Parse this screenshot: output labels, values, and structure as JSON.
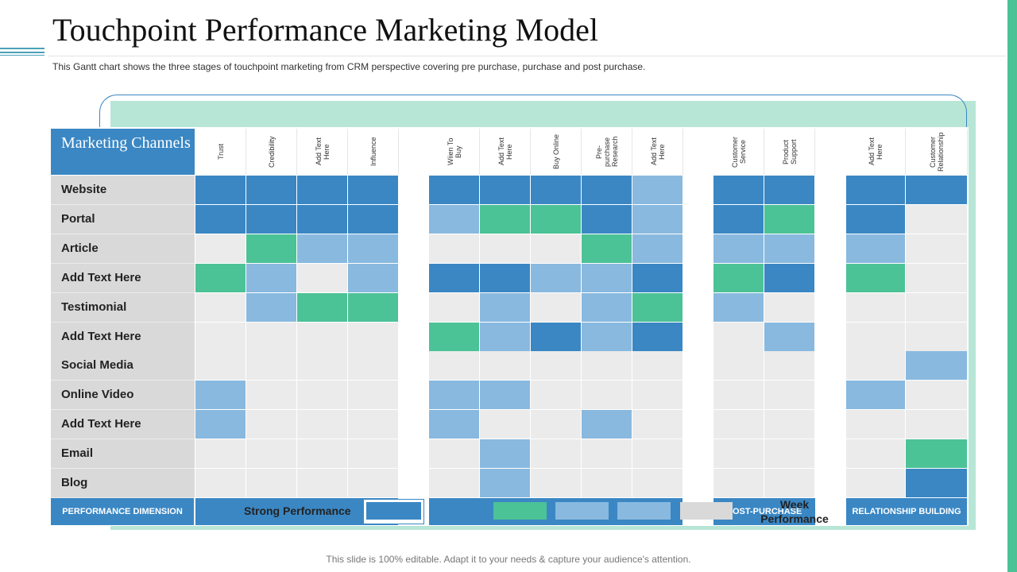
{
  "title": "Touchpoint Performance Marketing Model",
  "subtitle": "This Gantt chart shows the three stages of touchpoint marketing from CRM perspective covering  pre purchase,  purchase and post purchase.",
  "footer": "This slide is 100% editable. Adapt it to your needs & capture your audience's attention.",
  "header_label": "Marketing Channels",
  "columns": [
    {
      "label": "Trust",
      "group": 0
    },
    {
      "label": "Credibility",
      "group": 0
    },
    {
      "label": "Add Text Here",
      "group": 0
    },
    {
      "label": "Influence",
      "group": 0
    },
    {
      "label": "Wiien To Buy",
      "group": 1
    },
    {
      "label": "Add Text Here",
      "group": 1
    },
    {
      "label": "Buy Online",
      "group": 1
    },
    {
      "label": "Pre-purchase Research",
      "group": 1
    },
    {
      "label": "Add Text Here",
      "group": 1
    },
    {
      "label": "Customer Service",
      "group": 2
    },
    {
      "label": "Product Support",
      "group": 2
    },
    {
      "label": "Add Text Here",
      "group": 3
    },
    {
      "label": "Customer Relationship",
      "group": 3
    }
  ],
  "rows": [
    {
      "label": "Website",
      "cells": [
        "S",
        "S",
        "S",
        "S",
        "S",
        "S",
        "S",
        "S",
        "M",
        "S",
        "S",
        "S",
        "S"
      ]
    },
    {
      "label": "Portal",
      "cells": [
        "S",
        "S",
        "S",
        "S",
        "M",
        "G",
        "G",
        "S",
        "M",
        "S",
        "G",
        "S",
        "N"
      ]
    },
    {
      "label": "Article",
      "cells": [
        "N",
        "G",
        "M",
        "M",
        "N",
        "N",
        "N",
        "G",
        "M",
        "M",
        "M",
        "M",
        "N"
      ]
    },
    {
      "label": "Add  Text Here",
      "cells": [
        "G",
        "M",
        "N",
        "M",
        "S",
        "S",
        "M",
        "M",
        "S",
        "G",
        "S",
        "G",
        "N"
      ]
    },
    {
      "label": "Testimonial",
      "cells": [
        "N",
        "M",
        "G",
        "G",
        "N",
        "M",
        "N",
        "M",
        "G",
        "M",
        "N",
        "N",
        "N"
      ]
    },
    {
      "label": "Add  Text Here",
      "cells": [
        "N",
        "N",
        "N",
        "N",
        "G",
        "M",
        "S",
        "M",
        "S",
        "N",
        "M",
        "N",
        "N"
      ]
    },
    {
      "label": "Social Media",
      "cells": [
        "N",
        "N",
        "N",
        "N",
        "N",
        "N",
        "N",
        "N",
        "N",
        "N",
        "N",
        "N",
        "M"
      ]
    },
    {
      "label": "Online Video",
      "cells": [
        "M",
        "N",
        "N",
        "N",
        "M",
        "M",
        "N",
        "N",
        "N",
        "N",
        "N",
        "M",
        "N"
      ]
    },
    {
      "label": "Add  Text Here",
      "cells": [
        "M",
        "N",
        "N",
        "N",
        "M",
        "N",
        "N",
        "M",
        "N",
        "N",
        "N",
        "N",
        "N"
      ]
    },
    {
      "label": "Email",
      "cells": [
        "N",
        "N",
        "N",
        "N",
        "N",
        "M",
        "N",
        "N",
        "N",
        "N",
        "N",
        "N",
        "G"
      ]
    },
    {
      "label": "Blog",
      "cells": [
        "N",
        "N",
        "N",
        "N",
        "N",
        "M",
        "N",
        "N",
        "N",
        "N",
        "N",
        "N",
        "S"
      ]
    }
  ],
  "colors": {
    "S": "#3a87c4",
    "G": "#4cc297",
    "M": "#89b9df",
    "N": "#ebebeb",
    "accent": "#3a87c4",
    "mint": "#4cc297"
  },
  "footer_row": {
    "dimension": "PERFORMANCE  DIMENSION",
    "post_purchase": "POST-PURCHASE",
    "relationship": "RELATIONSHIP  BUILDING"
  },
  "legend": {
    "strong": "Strong Performance",
    "week": "Week Performance"
  }
}
